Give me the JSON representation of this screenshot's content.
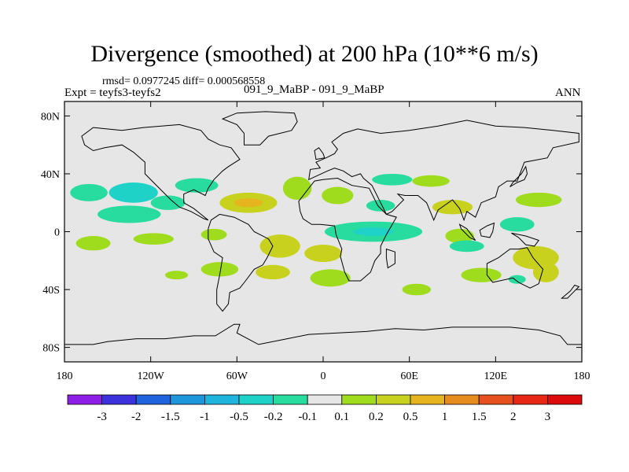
{
  "chart_data": {
    "type": "heatmap",
    "title": "Divergence (smoothed) at 200 hPa (10**6 m/s)",
    "stats_line": "rmsd= 0.0977245 diff= 0.000568558",
    "expt_label": "Expt = teyfs3-teyfs2",
    "case_label": "091_9_MaBP - 091_9_MaBP",
    "season": "ANN",
    "xlim": [
      -180,
      180
    ],
    "ylim": [
      -90,
      90
    ],
    "y_ticks": [
      {
        "value": 80,
        "label": "80N"
      },
      {
        "value": 40,
        "label": "40N"
      },
      {
        "value": 0,
        "label": "0"
      },
      {
        "value": -40,
        "label": "40S"
      },
      {
        "value": -80,
        "label": "80S"
      }
    ],
    "x_ticks": [
      {
        "value": -180,
        "label": "180"
      },
      {
        "value": -120,
        "label": "120W"
      },
      {
        "value": -60,
        "label": "60W"
      },
      {
        "value": 0,
        "label": "0"
      },
      {
        "value": 60,
        "label": "60E"
      },
      {
        "value": 120,
        "label": "120E"
      },
      {
        "value": 180,
        "label": "180"
      }
    ],
    "colorbar": {
      "labels": [
        "-3",
        "-2",
        "-1.5",
        "-1",
        "-0.5",
        "-0.2",
        "-0.1",
        "0.1",
        "0.2",
        "0.5",
        "1",
        "1.5",
        "2",
        "3"
      ],
      "colors": [
        "#8c1ee6",
        "#3c32dc",
        "#1e64dc",
        "#1e96dc",
        "#1eb4dc",
        "#1ed2c8",
        "#28dca0",
        "#e6e6e6",
        "#a0dc1e",
        "#c8d21e",
        "#e6b41e",
        "#e68c1e",
        "#e6501e",
        "#e62814",
        "#dc0a0a"
      ]
    },
    "regions": [
      {
        "value": -0.15,
        "lon": -163,
        "lat": 27,
        "rlon": 13,
        "rlat": 6
      },
      {
        "value": -0.4,
        "lon": -132,
        "lat": 27,
        "rlon": 17,
        "rlat": 7
      },
      {
        "value": -0.15,
        "lon": -108,
        "lat": 20,
        "rlon": 12,
        "rlat": 5
      },
      {
        "value": -0.15,
        "lon": -135,
        "lat": 12,
        "rlon": 22,
        "rlat": 6
      },
      {
        "value": 0.15,
        "lon": -160,
        "lat": -8,
        "rlon": 12,
        "rlat": 5
      },
      {
        "value": 0.15,
        "lon": -118,
        "lat": -5,
        "rlon": 14,
        "rlat": 4
      },
      {
        "value": 0.15,
        "lon": -76,
        "lat": -2,
        "rlon": 9,
        "rlat": 4
      },
      {
        "value": 0.15,
        "lon": -72,
        "lat": -26,
        "rlon": 13,
        "rlat": 5
      },
      {
        "value": 0.15,
        "lon": -102,
        "lat": -30,
        "rlon": 8,
        "rlat": 3
      },
      {
        "value": -0.15,
        "lon": -88,
        "lat": 32,
        "rlon": 15,
        "rlat": 5
      },
      {
        "value": 0.3,
        "lon": -52,
        "lat": 20,
        "rlon": 20,
        "rlat": 7
      },
      {
        "value": 0.6,
        "lon": -52,
        "lat": 20,
        "rlon": 10,
        "rlat": 3
      },
      {
        "value": 0.15,
        "lon": -18,
        "lat": 30,
        "rlon": 10,
        "rlat": 8
      },
      {
        "value": 0.3,
        "lon": -30,
        "lat": -10,
        "rlon": 14,
        "rlat": 8
      },
      {
        "value": 0.3,
        "lon": -35,
        "lat": -28,
        "rlon": 12,
        "rlat": 5
      },
      {
        "value": 0.3,
        "lon": 0,
        "lat": -15,
        "rlon": 13,
        "rlat": 6
      },
      {
        "value": 0.15,
        "lon": 5,
        "lat": -32,
        "rlon": 14,
        "rlat": 6
      },
      {
        "value": -0.15,
        "lon": 35,
        "lat": 0,
        "rlon": 34,
        "rlat": 7
      },
      {
        "value": -0.4,
        "lon": 35,
        "lat": 0,
        "rlon": 14,
        "rlat": 3
      },
      {
        "value": 0.15,
        "lon": 10,
        "lat": 25,
        "rlon": 11,
        "rlat": 6
      },
      {
        "value": -0.15,
        "lon": 40,
        "lat": 18,
        "rlon": 10,
        "rlat": 4
      },
      {
        "value": -0.15,
        "lon": 48,
        "lat": 36,
        "rlon": 14,
        "rlat": 4
      },
      {
        "value": 0.15,
        "lon": 75,
        "lat": 35,
        "rlon": 13,
        "rlat": 4
      },
      {
        "value": 0.3,
        "lon": 90,
        "lat": 17,
        "rlon": 14,
        "rlat": 5
      },
      {
        "value": 0.15,
        "lon": 95,
        "lat": -3,
        "rlon": 10,
        "rlat": 5
      },
      {
        "value": -0.15,
        "lon": 100,
        "lat": -10,
        "rlon": 12,
        "rlat": 4
      },
      {
        "value": 0.15,
        "lon": 150,
        "lat": 22,
        "rlon": 16,
        "rlat": 5
      },
      {
        "value": -0.15,
        "lon": 135,
        "lat": 5,
        "rlon": 12,
        "rlat": 5
      },
      {
        "value": 0.3,
        "lon": 148,
        "lat": -18,
        "rlon": 16,
        "rlat": 8
      },
      {
        "value": 0.3,
        "lon": 155,
        "lat": -28,
        "rlon": 9,
        "rlat": 7
      },
      {
        "value": 0.15,
        "lon": 110,
        "lat": -30,
        "rlon": 14,
        "rlat": 5
      },
      {
        "value": 0.15,
        "lon": 65,
        "lat": -40,
        "rlon": 10,
        "rlat": 4
      },
      {
        "value": -0.15,
        "lon": 135,
        "lat": -33,
        "rlon": 6,
        "rlat": 3
      }
    ]
  }
}
